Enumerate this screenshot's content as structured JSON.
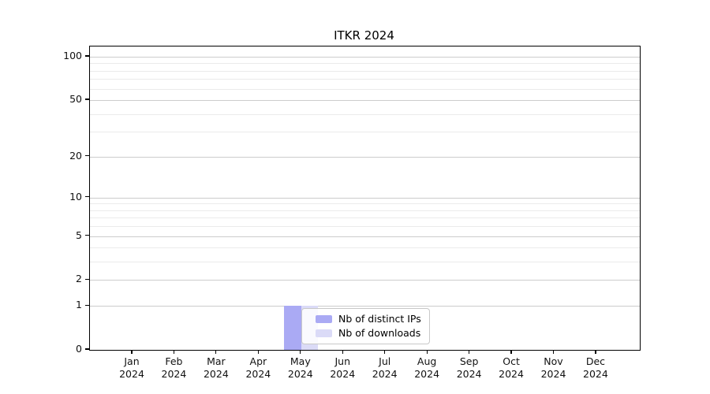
{
  "chart_data": {
    "type": "bar",
    "title": "ITKR 2024",
    "x_tick_labels": [
      "Jan\n2024",
      "Feb\n2024",
      "Mar\n2024",
      "Apr\n2024",
      "May\n2024",
      "Jun\n2024",
      "Jul\n2024",
      "Aug\n2024",
      "Sep\n2024",
      "Oct\n2024",
      "Nov\n2024",
      "Dec\n2024"
    ],
    "y_axis": {
      "scale": "log1p",
      "major_ticks": [
        0,
        1,
        2,
        5,
        10,
        20,
        50,
        100
      ],
      "minor_gridlines": [
        3,
        4,
        6,
        7,
        8,
        9,
        30,
        40,
        60,
        70,
        80,
        90
      ],
      "range": [
        0,
        118
      ]
    },
    "series": [
      {
        "name": "Nb of distinct IPs",
        "color": "#aaaaf4",
        "values": [
          0,
          0,
          0,
          0,
          1,
          0,
          0,
          0,
          0,
          0,
          0,
          0
        ]
      },
      {
        "name": "Nb of downloads",
        "color": "#dbdbf7",
        "values": [
          0,
          0,
          0,
          0,
          1,
          0,
          0,
          0,
          0,
          0,
          0,
          0
        ]
      }
    ],
    "legend": {
      "position": "inside-bottom-center"
    },
    "colors": {
      "grid_major": "#cccccc",
      "grid_minor": "#ebebeb",
      "spine": "#000000",
      "background": "#ffffff"
    }
  }
}
